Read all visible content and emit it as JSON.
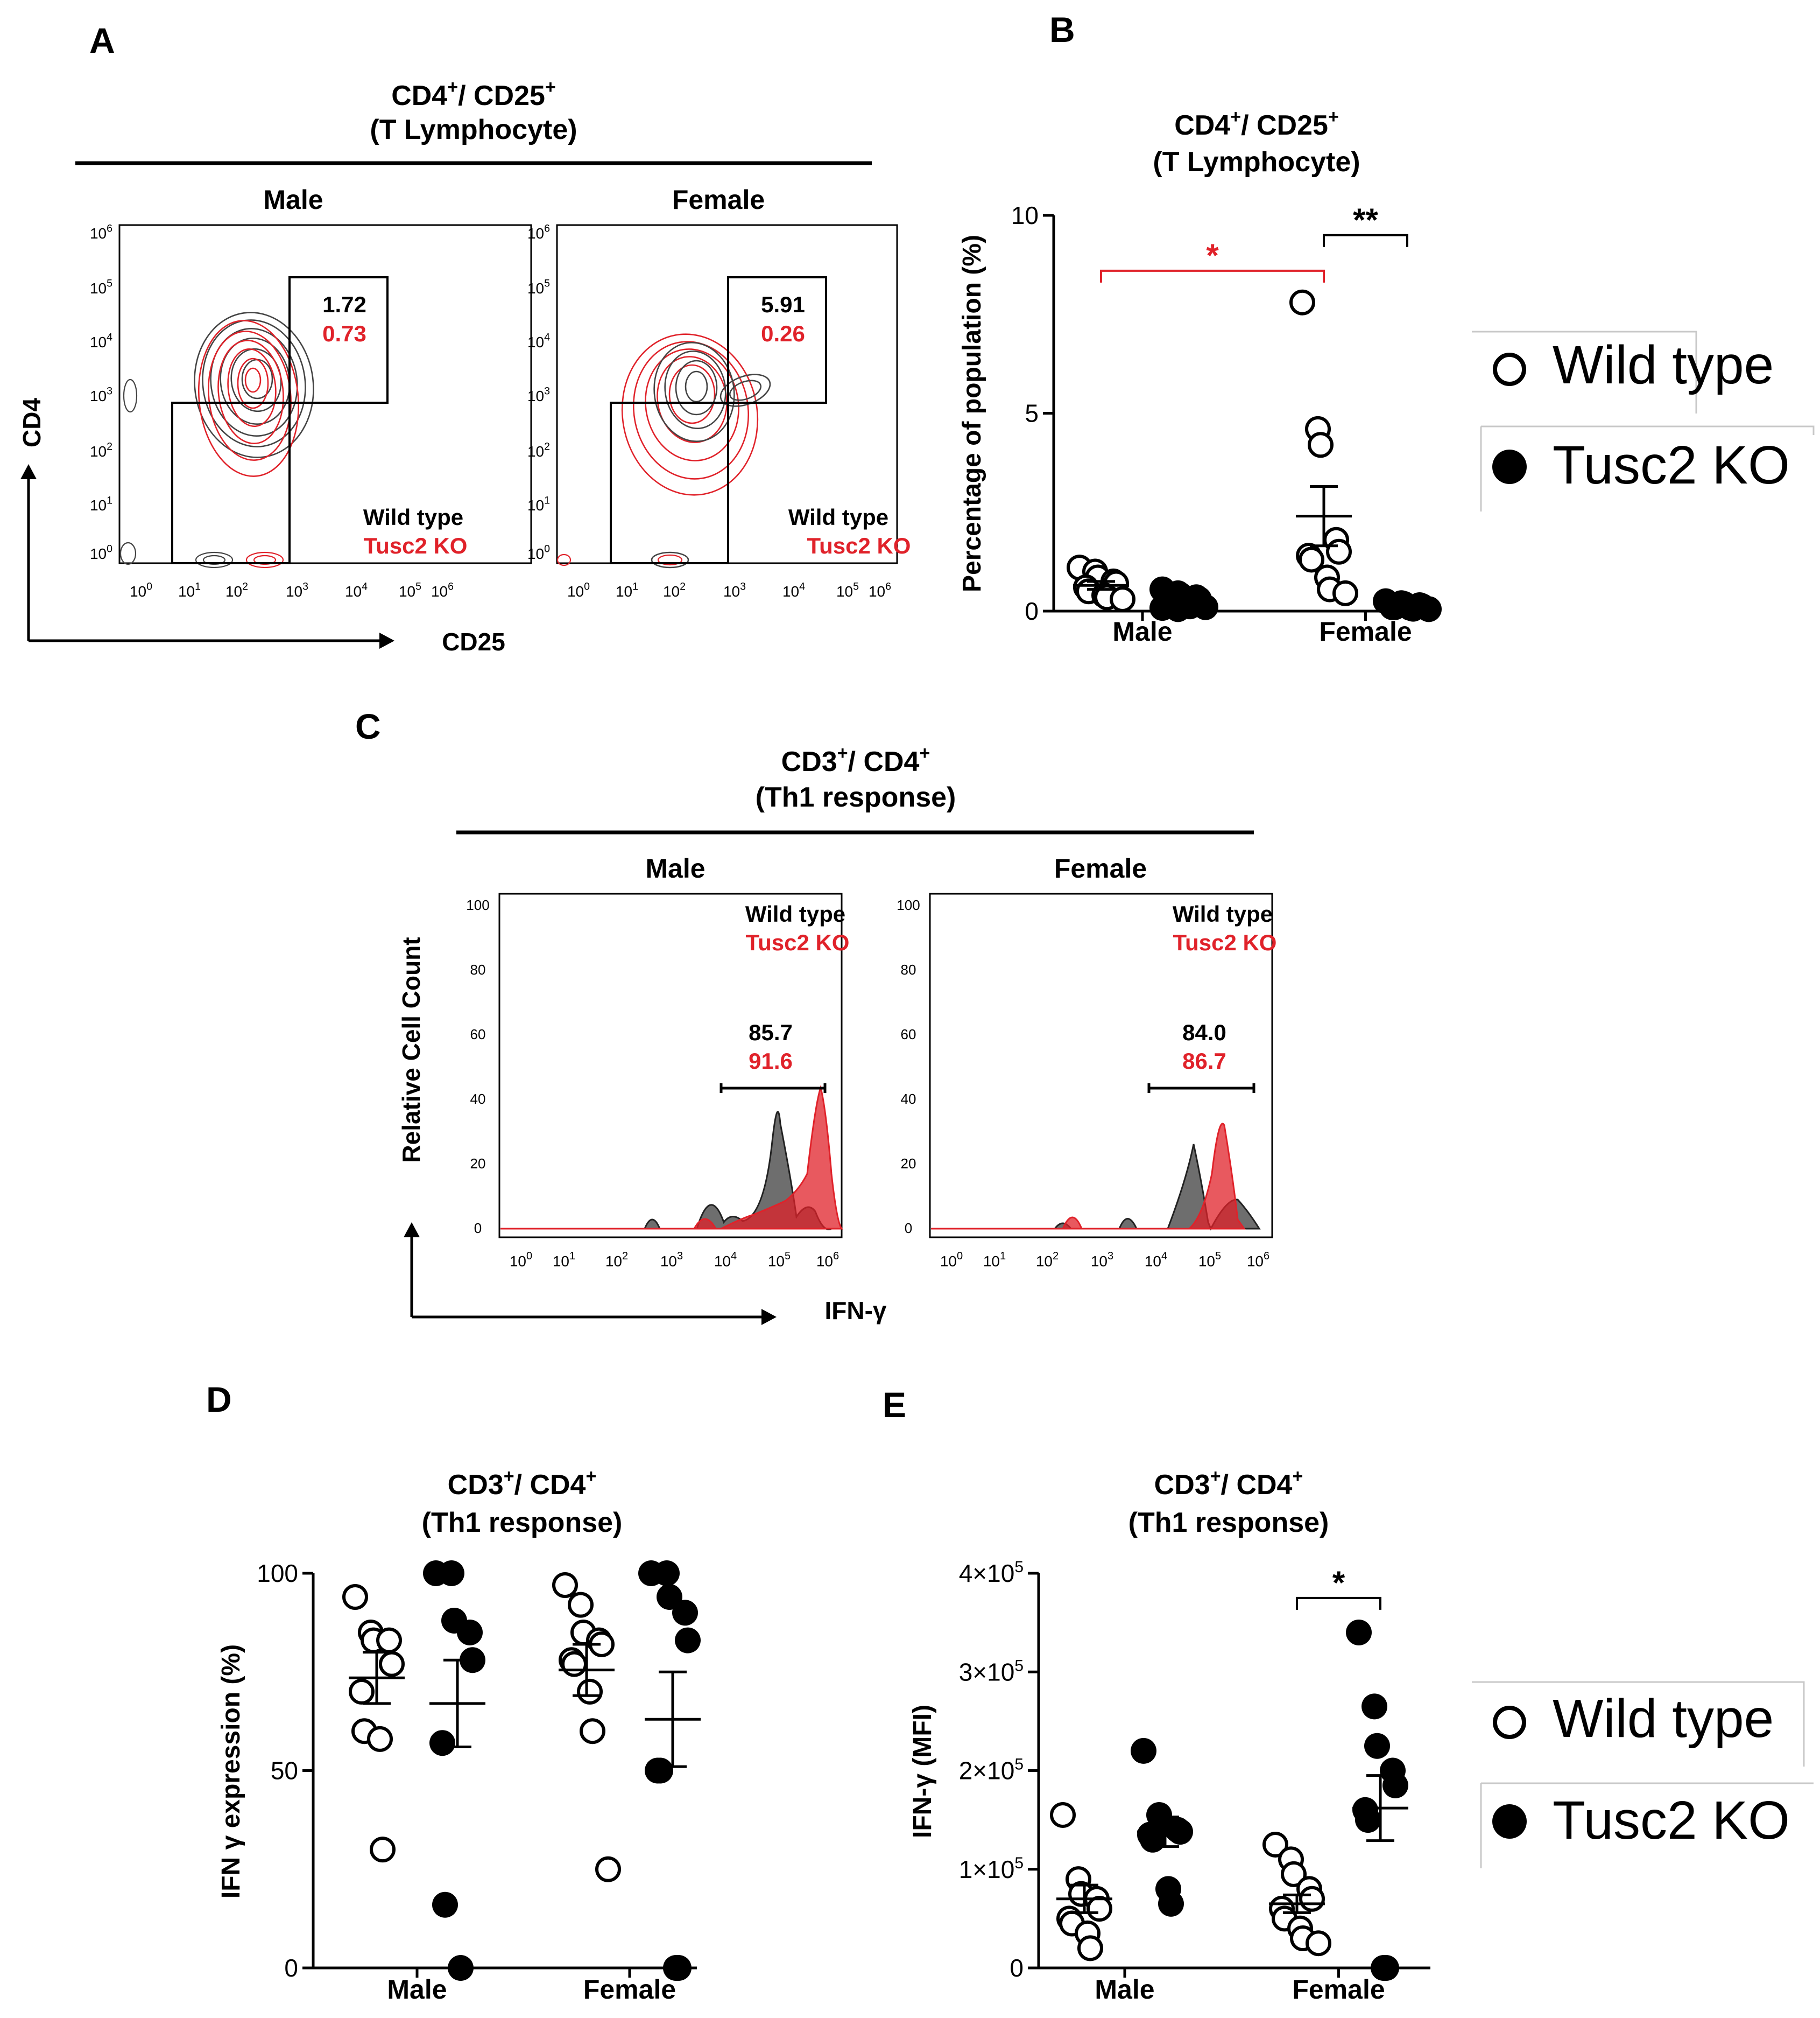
{
  "colors": {
    "wt": "#000000",
    "ko": "#e0222a",
    "wt_fill": "#555555",
    "ko_fill": "#e0222a"
  },
  "legend": {
    "wild_type": "Wild type",
    "ko": "Tusc2 KO"
  },
  "panels": {
    "A": {
      "label": "A",
      "title1": "CD4",
      "title1_sup": "+",
      "title1_rest": "/ CD25",
      "title1_sup2": "+",
      "title2": "(T Lymphocyte)",
      "male": "Male",
      "female": "Female",
      "xlabel": "CD25",
      "ylabel": "CD4",
      "male_wt": "1.72",
      "male_ko": "0.73",
      "female_wt": "5.91",
      "female_ko": "0.26",
      "legend_wt": "Wild type",
      "legend_ko": "Tusc2 KO"
    },
    "B": {
      "label": "B"
    },
    "C": {
      "label": "C",
      "title1": "CD3",
      "title1_sup": "+",
      "title1_rest": "/ CD4",
      "title1_sup2": "+",
      "title2": "(Th1 response)",
      "male": "Male",
      "female": "Female",
      "xlabel": "IFN-γ",
      "ylabel": "Relative Cell Count",
      "yticks": [
        "0",
        "20",
        "40",
        "60",
        "80",
        "100"
      ],
      "male_wt": "85.7",
      "male_ko": "91.6",
      "female_wt": "84.0",
      "female_ko": "86.7",
      "legend_wt": "Wild type",
      "legend_ko": "Tusc2 KO"
    },
    "D": {
      "label": "D"
    },
    "E": {
      "label": "E"
    }
  },
  "chart_data": [
    {
      "id": "B",
      "type": "scatter",
      "title": "CD4+/ CD25+",
      "title_sub": "(T Lymphocyte)",
      "ylabel": "Percentage of population (%)",
      "xlabel": "",
      "categories": [
        "Male",
        "Female"
      ],
      "ylim": [
        0,
        10
      ],
      "yticks": [
        0,
        5,
        10
      ],
      "ytick_labels": [
        "0",
        "5",
        "10"
      ],
      "series": [
        {
          "name": "Wild type",
          "marker": "open",
          "points": {
            "Male": [
              1.1,
              1.0,
              0.85,
              0.75,
              0.7,
              0.6,
              0.5,
              0.4,
              0.35,
              0.3
            ],
            "Female": [
              7.8,
              4.6,
              4.2,
              1.8,
              1.5,
              1.4,
              1.3,
              0.85,
              0.55,
              0.45
            ]
          },
          "mean": {
            "Male": 0.65,
            "Female": 2.4
          },
          "sem": {
            "Male": 0.1,
            "Female": 0.75
          }
        },
        {
          "name": "Tusc2 KO",
          "marker": "filled",
          "points": {
            "Male": [
              0.55,
              0.45,
              0.4,
              0.35,
              0.3,
              0.25,
              0.2,
              0.15,
              0.12,
              0.1,
              0.08,
              0.05
            ],
            "Female": [
              0.25,
              0.2,
              0.18,
              0.15,
              0.12,
              0.1,
              0.1,
              0.08,
              0.06,
              0.05
            ]
          },
          "mean": {
            "Male": 0.25,
            "Female": 0.13
          },
          "sem": {
            "Male": 0.05,
            "Female": 0.02
          }
        }
      ],
      "significance": [
        {
          "label": "*",
          "from": "Male Wild type",
          "to": "Female Wild type",
          "color": "#e0222a",
          "y": 8.6
        },
        {
          "label": "**",
          "from": "Female Wild type",
          "to": "Female Tusc2 KO",
          "color": "#000000",
          "y": 9.5
        }
      ]
    },
    {
      "id": "D",
      "type": "scatter",
      "title": "CD3+/ CD4+",
      "title_sub": "(Th1 response)",
      "ylabel": "IFN γ expression (%)",
      "xlabel": "",
      "categories": [
        "Male",
        "Female"
      ],
      "ylim": [
        0,
        100
      ],
      "yticks": [
        0,
        50,
        100
      ],
      "ytick_labels": [
        "0",
        "50",
        "100"
      ],
      "series": [
        {
          "name": "Wild type",
          "marker": "open",
          "points": {
            "Male": [
              94,
              85,
              83,
              83,
              77,
              70,
              60,
              58,
              30
            ],
            "Female": [
              97,
              92,
              85,
              83,
              82,
              78,
              77,
              70,
              60,
              25
            ]
          },
          "mean": {
            "Male": 73.5,
            "Female": 75.5
          },
          "sem": {
            "Male": 6.5,
            "Female": 6.5
          }
        },
        {
          "name": "Tusc2 KO",
          "marker": "filled",
          "points": {
            "Male": [
              100,
              100,
              88,
              85,
              78,
              57,
              16,
              0
            ],
            "Female": [
              100,
              100,
              94,
              90,
              83,
              50,
              50,
              0,
              0
            ]
          },
          "mean": {
            "Male": 67,
            "Female": 63
          },
          "sem": {
            "Male": 11,
            "Female": 12
          }
        }
      ],
      "significance": []
    },
    {
      "id": "E",
      "type": "scatter",
      "title": "CD3+/ CD4+",
      "title_sub": "(Th1 response)",
      "ylabel": "IFN-γ (MFI)",
      "xlabel": "",
      "categories": [
        "Male",
        "Female"
      ],
      "ylim": [
        0,
        400000
      ],
      "yticks": [
        0,
        100000,
        200000,
        300000,
        400000
      ],
      "ytick_labels": [
        "0",
        "1×10",
        "2×10",
        "3×10",
        "4×10"
      ],
      "ytick_exp": [
        "",
        "5",
        "5",
        "5",
        "5"
      ],
      "series": [
        {
          "name": "Wild type",
          "marker": "open",
          "points": {
            "Male": [
              155000,
              90000,
              75000,
              70000,
              60000,
              50000,
              45000,
              35000,
              20000
            ],
            "Female": [
              125000,
              110000,
              95000,
              80000,
              70000,
              60000,
              50000,
              40000,
              30000,
              25000
            ]
          },
          "mean": {
            "Male": 70000,
            "Female": 65000
          },
          "sem": {
            "Male": 14000,
            "Female": 9000
          }
        },
        {
          "name": "Tusc2 KO",
          "marker": "filled",
          "points": {
            "Male": [
              220000,
              155000,
              145000,
              140000,
              138000,
              135000,
              130000,
              80000,
              65000
            ],
            "Female": [
              340000,
              265000,
              225000,
              200000,
              185000,
              160000,
              150000,
              0,
              0
            ]
          },
          "mean": {
            "Male": 138000,
            "Female": 162000
          },
          "sem": {
            "Male": 15000,
            "Female": 33000
          }
        }
      ],
      "significance": [
        {
          "label": "*",
          "from": "Female Wild type",
          "to": "Female Tusc2 KO",
          "color": "#000000",
          "y": 375000
        }
      ]
    }
  ]
}
